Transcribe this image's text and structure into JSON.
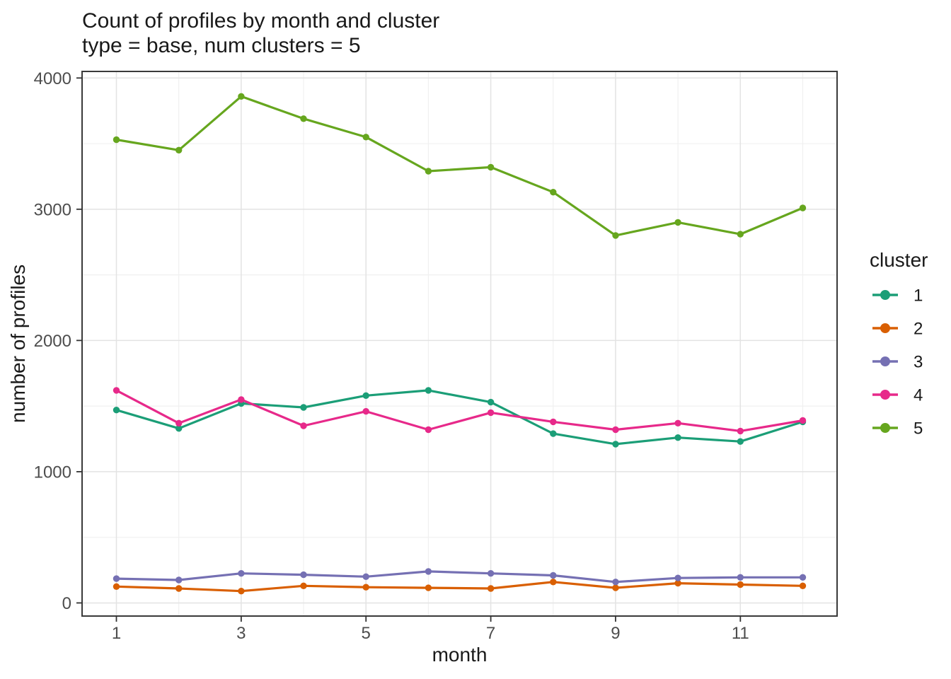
{
  "chart_data": {
    "type": "line",
    "title": "Count of profiles by month and cluster",
    "subtitle": "type = base, num clusters = 5",
    "xlabel": "month",
    "ylabel": "number of profiles",
    "legend_title": "cluster",
    "legend_position": "right",
    "grid": true,
    "x": [
      1,
      2,
      3,
      4,
      5,
      6,
      7,
      8,
      9,
      10,
      11,
      12
    ],
    "x_ticks": [
      1,
      3,
      5,
      7,
      9,
      11
    ],
    "x_minor_gridlines": [
      2,
      4,
      6,
      8,
      10,
      12
    ],
    "y_ticks": [
      0,
      1000,
      2000,
      3000,
      4000
    ],
    "y_minor_gridlines": [
      500,
      1500,
      2500,
      3500
    ],
    "xlim": [
      0.45,
      12.55
    ],
    "ylim": [
      -100,
      4050
    ],
    "series": [
      {
        "name": "1",
        "color": "#1B9E77",
        "values": [
          1470,
          1330,
          1520,
          1490,
          1580,
          1620,
          1530,
          1290,
          1210,
          1260,
          1230,
          1380
        ]
      },
      {
        "name": "2",
        "color": "#D95F02",
        "values": [
          125,
          110,
          90,
          130,
          120,
          115,
          110,
          160,
          115,
          150,
          140,
          130
        ]
      },
      {
        "name": "3",
        "color": "#7570B3",
        "values": [
          185,
          175,
          225,
          215,
          200,
          240,
          225,
          210,
          160,
          190,
          195,
          195
        ]
      },
      {
        "name": "4",
        "color": "#E7298A",
        "values": [
          1620,
          1370,
          1550,
          1350,
          1460,
          1320,
          1450,
          1380,
          1320,
          1370,
          1310,
          1390
        ]
      },
      {
        "name": "5",
        "color": "#66A61E",
        "values": [
          3530,
          3450,
          3860,
          3690,
          3550,
          3290,
          3320,
          3130,
          2800,
          2900,
          2810,
          3010
        ]
      }
    ]
  },
  "style": {
    "background": "#FFFFFF",
    "panel_border_color": "#3A3A3A",
    "grid_major_color": "#E3E3E3",
    "grid_minor_color": "#F0F0F0",
    "tick_color": "#333333",
    "tick_label_color": "#4D4D4D",
    "text_color": "#1A1A1A"
  }
}
